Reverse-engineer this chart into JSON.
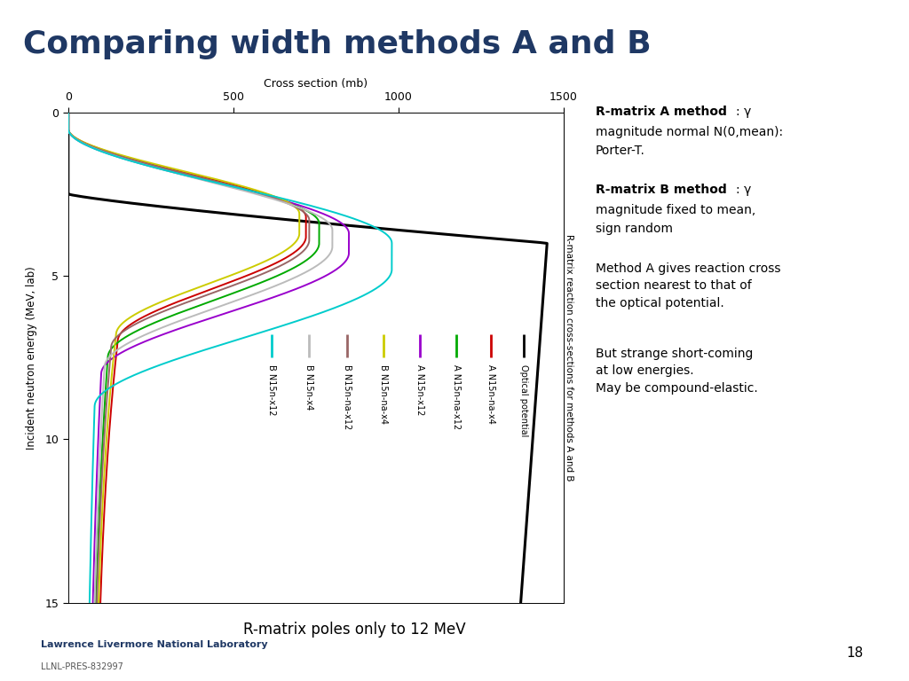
{
  "title": "Comparing width methods A and B",
  "title_color": "#1F3864",
  "separator_color": "#2E6DA4",
  "xlim": [
    0,
    1500
  ],
  "ylim_bottom": 15,
  "ylim_top": 0,
  "xticks": [
    0,
    500,
    1000,
    1500
  ],
  "yticks": [
    0,
    5,
    10,
    15
  ],
  "xlabel_top": "Cross section (mb)",
  "ylabel_left": "Incident neutron energy (MeV, lab)",
  "ylabel_right": "R-matrix reaction cross-sections for methods A and B",
  "bottom_note": "R-matrix poles only to 12 MeV",
  "legend_entries": [
    {
      "label": "Optical potential",
      "color": "#000000"
    },
    {
      "label": "A N15n-na-x4",
      "color": "#cc0000"
    },
    {
      "label": "A N15n-na-x12",
      "color": "#00aa00"
    },
    {
      "label": "A N15n-x12",
      "color": "#9900cc"
    },
    {
      "label": "B N15n-na-x4",
      "color": "#cccc00"
    },
    {
      "label": "B N15n-na-x12",
      "color": "#996666"
    },
    {
      "label": "B N15n-x4",
      "color": "#bbbbbb"
    },
    {
      "label": "B N15n-x12",
      "color": "#00cccc"
    }
  ],
  "ann_a_bold": "R-matrix A method",
  "ann_a_rest": ": γ\nmagnitude normal N(0,mean):\nPorter-T.",
  "ann_b_bold": "R-matrix B method",
  "ann_b_rest": ": γ\nmagnitude fixed to mean,\nsign random",
  "ann_c": "Method A gives reaction cross\nsection nearest to that of\nthe optical potential.",
  "ann_d": "But strange short-coming\nat low energies.\nMay be compound-elastic.",
  "footer_lab": "Lawrence Livermore National Laboratory",
  "footer_sub": "LLNL-PRES-832997",
  "page_num": "18",
  "bg_color": "#ffffff",
  "footer_bg": "#e8e8e8",
  "footer_line_color": "#2E6DA4"
}
